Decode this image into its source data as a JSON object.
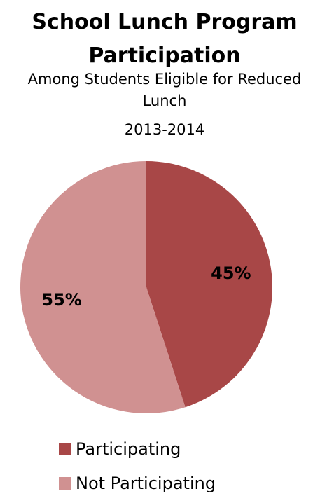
{
  "chart_data": {
    "type": "pie",
    "title": "School Lunch Program Participation",
    "subtitle": [
      "Among Students Eligible for Reduced Lunch",
      "2013-2014"
    ],
    "categories": [
      "Participating",
      "Not Participating"
    ],
    "values": [
      45,
      55
    ],
    "value_labels": [
      "45%",
      "55%"
    ],
    "colors": [
      "#a84747",
      "#d09191"
    ],
    "legend": "bottom"
  }
}
